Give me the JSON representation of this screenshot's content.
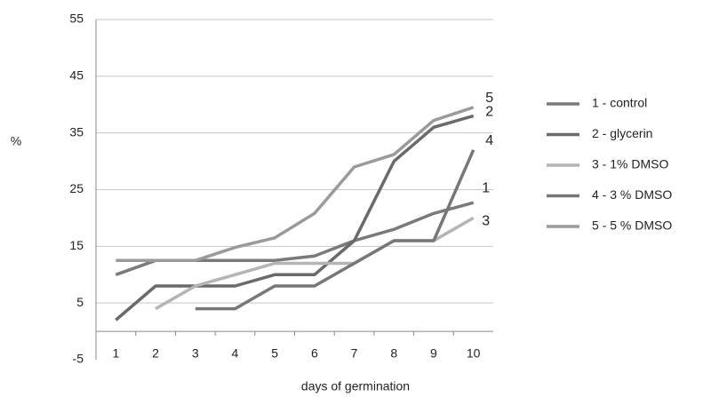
{
  "chart_data": {
    "type": "line",
    "xlabel": "days of germination",
    "ylabel": "%",
    "categories": [
      "1",
      "2",
      "3",
      "4",
      "5",
      "6",
      "7",
      "8",
      "9",
      "10"
    ],
    "ylim": [
      -5,
      55
    ],
    "yticks": [
      -5,
      5,
      15,
      25,
      35,
      45,
      55
    ],
    "grid": true,
    "legend": "right",
    "series": [
      {
        "name": "1 - control",
        "end_label": "1",
        "color": "#7a7a7a",
        "values": [
          10,
          12.5,
          12.5,
          12.5,
          12.5,
          13.3,
          16,
          18,
          20.8,
          22.7
        ]
      },
      {
        "name": "2 - glycerin",
        "end_label": "2",
        "color": "#6a6a6a",
        "values": [
          2,
          8,
          8,
          8,
          10,
          10,
          16,
          30,
          36,
          38
        ]
      },
      {
        "name": "3 - 1% DMSO",
        "end_label": "3",
        "color": "#b4b4b4",
        "values": [
          null,
          4,
          8,
          10,
          12,
          12,
          12,
          16,
          16,
          20
        ]
      },
      {
        "name": "4 - 3 % DMSO",
        "end_label": "4",
        "color": "#777777",
        "values": [
          null,
          null,
          4,
          4,
          8,
          8,
          12,
          16,
          16,
          32
        ]
      },
      {
        "name": "5 - 5 % DMSO",
        "end_label": "5",
        "color": "#9a9a9a",
        "values": [
          12.5,
          12.5,
          12.5,
          14.8,
          16.5,
          20.8,
          29,
          31.2,
          37.2,
          39.5
        ]
      }
    ]
  }
}
